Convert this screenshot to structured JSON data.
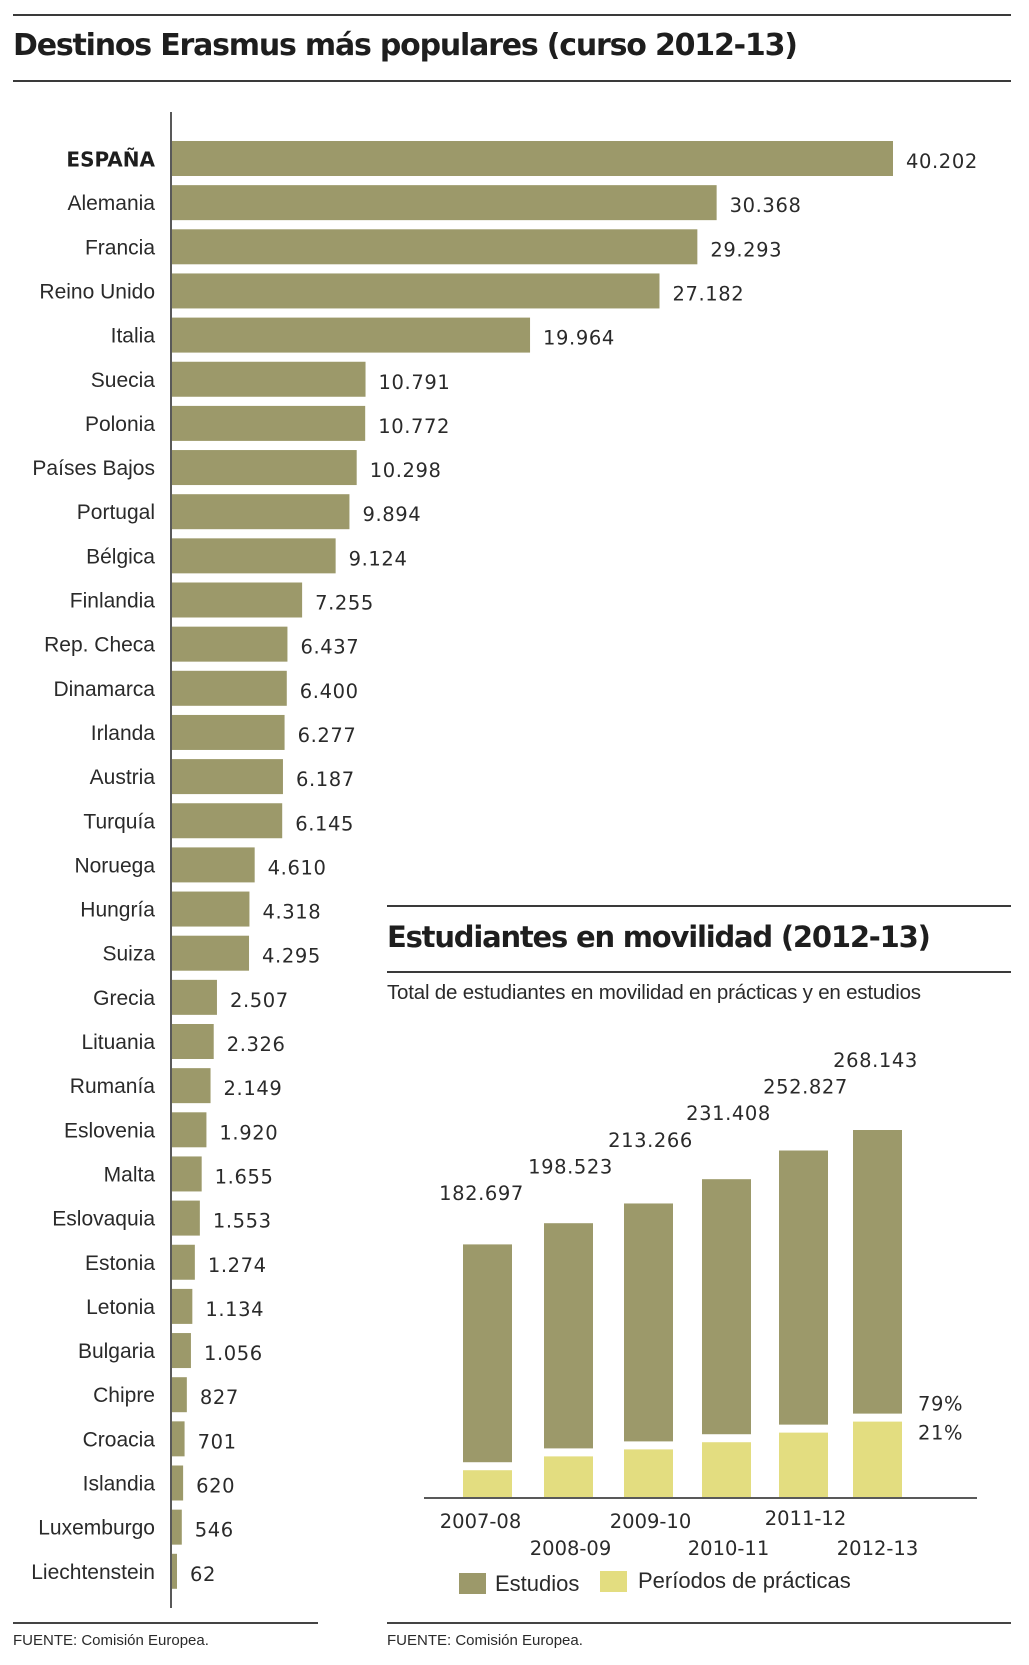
{
  "colors": {
    "estudios": "#9c996a",
    "practicas": "#e3dd80",
    "bar": "#9c996a",
    "text": "#2a2a2a",
    "rule": "#3a3a3a"
  },
  "left_panel": {
    "title": "Destinos Erasmus más populares (curso 2012-13)",
    "source": "FUENTE:  Comisión Europea."
  },
  "right_panel": {
    "title": "Estudiantes en movilidad (2012-13)",
    "subtitle": "Total de estudiantes en movilidad en prácticas y en estudios",
    "source": "FUENTE:  Comisión Europea."
  },
  "chart_data": [
    {
      "type": "bar",
      "orientation": "horizontal",
      "title": "Destinos Erasmus más populares (curso 2012-13)",
      "xlabel": "",
      "ylabel": "",
      "highlight": "ESPAÑA",
      "categories": [
        "ESPAÑA",
        "Alemania",
        "Francia",
        "Reino Unido",
        "Italia",
        "Suecia",
        "Polonia",
        "Países Bajos",
        "Portugal",
        "Bélgica",
        "Finlandia",
        "Rep. Checa",
        "Dinamarca",
        "Irlanda",
        "Austria",
        "Turquía",
        "Noruega",
        "Hungría",
        "Suiza",
        "Grecia",
        "Lituania",
        "Rumanía",
        "Eslovenia",
        "Malta",
        "Eslovaquia",
        "Estonia",
        "Letonia",
        "Bulgaria",
        "Chipre",
        "Croacia",
        "Islandia",
        "Luxemburgo",
        "Liechtenstein"
      ],
      "values": [
        40202,
        30368,
        29293,
        27182,
        19964,
        10791,
        10772,
        10298,
        9894,
        9124,
        7255,
        6437,
        6400,
        6277,
        6187,
        6145,
        4610,
        4318,
        4295,
        2507,
        2326,
        2149,
        1920,
        1655,
        1553,
        1274,
        1134,
        1056,
        827,
        701,
        620,
        546,
        62
      ],
      "labels": [
        "40.202",
        "30.368",
        "29.293",
        "27.182",
        "19.964",
        "10.791",
        "10.772",
        "10.298",
        "9.894",
        "9.124",
        "7.255",
        "6.437",
        "6.400",
        "6.277",
        "6.187",
        "6.145",
        "4.610",
        "4.318",
        "4.295",
        "2.507",
        "2.326",
        "2.149",
        "1.920",
        "1.655",
        "1.553",
        "1.274",
        "1.134",
        "1.056",
        "827",
        "701",
        "620",
        "546",
        "62"
      ],
      "xlim": [
        0,
        40202
      ],
      "grid": false,
      "legend": "none"
    },
    {
      "type": "bar",
      "orientation": "vertical",
      "stacked": true,
      "title": "Estudiantes en movilidad (2012-13)",
      "subtitle": "Total de estudiantes en movilidad en prácticas y en estudios",
      "categories": [
        "2007-08",
        "2008-09",
        "2009-10",
        "2010-11",
        "2011-12",
        "2012-13"
      ],
      "totals": [
        182697,
        198523,
        213266,
        231408,
        252827,
        268143
      ],
      "total_labels": [
        "182.697",
        "198.523",
        "213.266",
        "231.408",
        "252.827",
        "268.143"
      ],
      "series": [
        {
          "name": "Estudios",
          "values": [
            162695,
            168193,
            177705,
            190495,
            204744,
            211832
          ]
        },
        {
          "name": "Períodos de prácticas",
          "values": [
            20002,
            30330,
            35561,
            40913,
            48083,
            56311
          ]
        }
      ],
      "share_labels": {
        "estudios": "79%",
        "practicas": "21%"
      },
      "ylim": [
        0,
        268143
      ],
      "grid": false,
      "legend": "bottom",
      "legend_entries": [
        "Estudios",
        "Períodos de prácticas"
      ]
    }
  ]
}
